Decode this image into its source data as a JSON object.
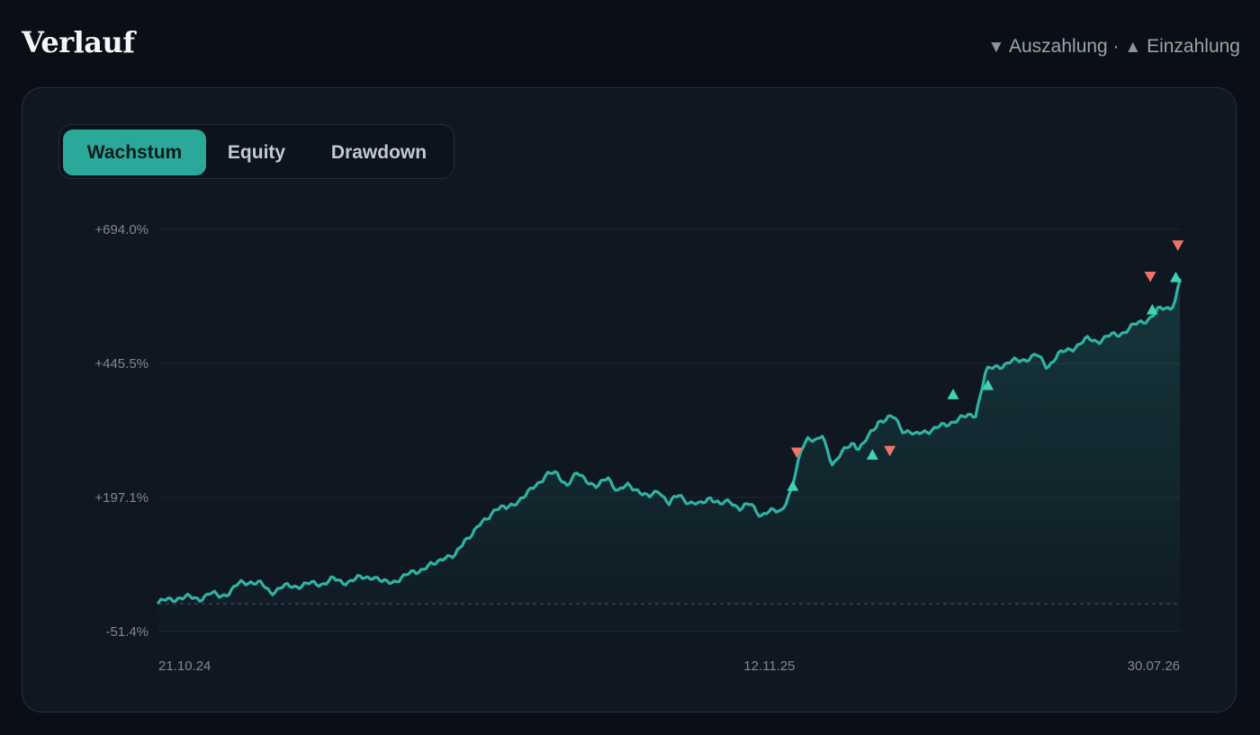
{
  "header": {
    "title": "Verlauf",
    "legend_prefix_icon": "▼",
    "legend_withdrawal": "Auszahlung",
    "legend_separator": "·",
    "legend_deposit_icon": "▲",
    "legend_deposit": "Einzahlung"
  },
  "tabs": [
    {
      "label": "Wachstum",
      "active": true
    },
    {
      "label": "Equity",
      "active": false
    },
    {
      "label": "Drawdown",
      "active": false
    }
  ],
  "colors": {
    "accent": "#2aa89a",
    "line": "#2fb3a2",
    "deposit": "#3fd3b5",
    "withdrawal": "#f07368",
    "grid": "#1e2835",
    "baseline": "#4a5562"
  },
  "chart_data": {
    "type": "area",
    "ytick_labels": [
      "+694.0%",
      "+445.5%",
      "+197.1%",
      "-51.4%"
    ],
    "yticks": [
      694.0,
      445.5,
      197.1,
      -51.4
    ],
    "ylim": [
      -51.4,
      694.0
    ],
    "xlim": [
      "2024-10-21",
      "2026-07-30"
    ],
    "xtick_labels": [
      "21.10.24",
      "12.11.25",
      "30.07.26"
    ],
    "xticks": [
      "2024-10-21",
      "2025-11-12",
      "2026-07-30"
    ],
    "grid": true,
    "baseline_value": 0,
    "series": [
      {
        "values": [
          [
            0.0,
            2
          ],
          [
            0.02,
            12
          ],
          [
            0.04,
            10
          ],
          [
            0.05,
            18
          ],
          [
            0.06,
            15
          ],
          [
            0.07,
            22
          ],
          [
            0.08,
            38
          ],
          [
            0.09,
            42
          ],
          [
            0.1,
            36
          ],
          [
            0.11,
            22
          ],
          [
            0.12,
            30
          ],
          [
            0.14,
            35
          ],
          [
            0.16,
            38
          ],
          [
            0.17,
            45
          ],
          [
            0.18,
            40
          ],
          [
            0.2,
            48
          ],
          [
            0.21,
            52
          ],
          [
            0.22,
            38
          ],
          [
            0.24,
            48
          ],
          [
            0.25,
            60
          ],
          [
            0.27,
            72
          ],
          [
            0.28,
            90
          ],
          [
            0.29,
            85
          ],
          [
            0.3,
            120
          ],
          [
            0.31,
            135
          ],
          [
            0.32,
            155
          ],
          [
            0.33,
            178
          ],
          [
            0.34,
            175
          ],
          [
            0.35,
            190
          ],
          [
            0.36,
            200
          ],
          [
            0.37,
            222
          ],
          [
            0.38,
            240
          ],
          [
            0.39,
            240
          ],
          [
            0.4,
            222
          ],
          [
            0.41,
            240
          ],
          [
            0.42,
            230
          ],
          [
            0.43,
            215
          ],
          [
            0.44,
            235
          ],
          [
            0.45,
            210
          ],
          [
            0.46,
            218
          ],
          [
            0.47,
            212
          ],
          [
            0.48,
            195
          ],
          [
            0.49,
            212
          ],
          [
            0.5,
            185
          ],
          [
            0.51,
            202
          ],
          [
            0.52,
            188
          ],
          [
            0.53,
            182
          ],
          [
            0.54,
            200
          ],
          [
            0.55,
            182
          ],
          [
            0.56,
            192
          ],
          [
            0.57,
            175
          ],
          [
            0.58,
            185
          ],
          [
            0.59,
            165
          ],
          [
            0.6,
            170
          ],
          [
            0.61,
            175
          ],
          [
            0.62,
            210
          ],
          [
            0.63,
            290
          ],
          [
            0.635,
            310
          ],
          [
            0.645,
            300
          ],
          [
            0.65,
            310
          ],
          [
            0.66,
            260
          ],
          [
            0.67,
            280
          ],
          [
            0.68,
            300
          ],
          [
            0.685,
            290
          ],
          [
            0.69,
            295
          ],
          [
            0.7,
            322
          ],
          [
            0.705,
            340
          ],
          [
            0.72,
            345
          ],
          [
            0.73,
            320
          ],
          [
            0.735,
            322
          ],
          [
            0.74,
            310
          ],
          [
            0.75,
            320
          ],
          [
            0.76,
            325
          ],
          [
            0.77,
            330
          ],
          [
            0.78,
            342
          ],
          [
            0.79,
            345
          ],
          [
            0.8,
            352
          ],
          [
            0.81,
            430
          ],
          [
            0.82,
            440
          ],
          [
            0.83,
            445
          ],
          [
            0.84,
            450
          ],
          [
            0.85,
            455
          ],
          [
            0.86,
            460
          ],
          [
            0.87,
            440
          ],
          [
            0.88,
            460
          ],
          [
            0.89,
            470
          ],
          [
            0.9,
            480
          ],
          [
            0.91,
            490
          ],
          [
            0.92,
            488
          ],
          [
            0.93,
            495
          ],
          [
            0.94,
            500
          ],
          [
            0.95,
            510
          ],
          [
            0.96,
            520
          ],
          [
            0.97,
            530
          ],
          [
            0.98,
            545
          ],
          [
            0.99,
            550
          ],
          [
            0.995,
            560
          ],
          [
            1.0,
            600
          ]
        ],
        "x_scale": "fraction-of-time-range"
      }
    ],
    "events": [
      {
        "type": "Einzahlung",
        "t": 0.621,
        "value": 218
      },
      {
        "type": "Auszahlung",
        "t": 0.625,
        "value": 281
      },
      {
        "type": "Einzahlung",
        "t": 0.699,
        "value": 276
      },
      {
        "type": "Auszahlung",
        "t": 0.716,
        "value": 284
      },
      {
        "type": "Einzahlung",
        "t": 0.778,
        "value": 388
      },
      {
        "type": "Einzahlung",
        "t": 0.812,
        "value": 405
      },
      {
        "type": "Einzahlung",
        "t": 0.973,
        "value": 545
      },
      {
        "type": "Auszahlung",
        "t": 0.971,
        "value": 607
      },
      {
        "type": "Einzahlung",
        "t": 0.996,
        "value": 605
      },
      {
        "type": "Auszahlung",
        "t": 0.998,
        "value": 665
      }
    ]
  }
}
